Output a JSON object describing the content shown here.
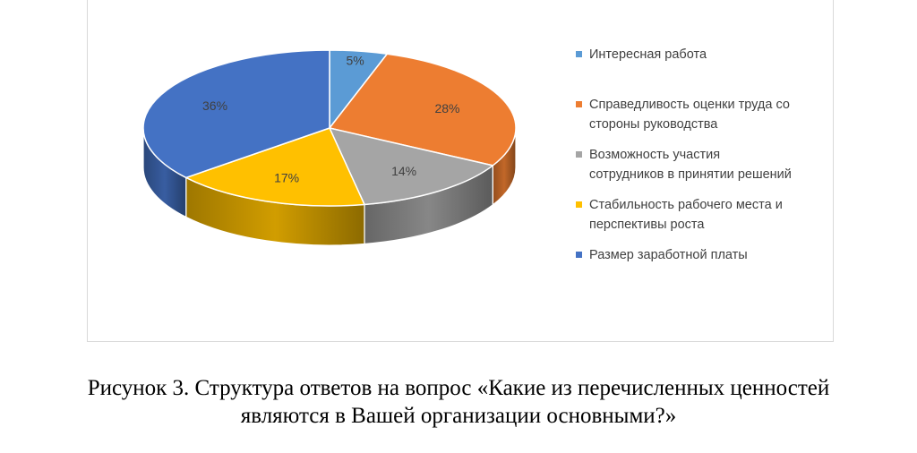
{
  "chart_data": {
    "type": "pie",
    "categories": [
      "Интересная работа",
      "Справедливость оценки труда со стороны руководства",
      "Возможность участия сотрудников в принятии решений",
      "Стабильность рабочего места и перспективы роста",
      "Размер заработной платы"
    ],
    "values": [
      5,
      28,
      14,
      17,
      36
    ],
    "data_labels": [
      "5%",
      "28%",
      "14%",
      "17%",
      "36%"
    ],
    "colors": [
      "#5B9BD5",
      "#ED7D31",
      "#A5A5A5",
      "#FFC000",
      "#4472C4"
    ],
    "legend_lines": [
      [
        "Интересная работа"
      ],
      [
        "Справедливость оценки труда со",
        "стороны руководства"
      ],
      [
        "Возможность участия",
        "сотрудников в принятии решений"
      ],
      [
        "Стабильность рабочего места и",
        "перспективы роста"
      ],
      [
        "Размер заработной платы"
      ]
    ],
    "legend_position": "right",
    "style": "3d-pie"
  },
  "caption": {
    "line1": "Рисунок 3. Структура ответов на вопрос «Какие из перечисленных ценностей",
    "line2": "являются в Вашей организации основными?»"
  }
}
